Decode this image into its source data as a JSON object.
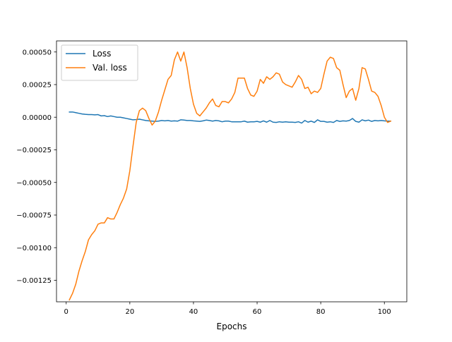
{
  "chart_data": {
    "type": "line",
    "title": "",
    "xlabel": "Epochs",
    "ylabel": "",
    "xlim": [
      -3.05,
      107.05
    ],
    "ylim": [
      -0.001415,
      0.000585
    ],
    "xticks": [
      0,
      20,
      40,
      60,
      80,
      100
    ],
    "xtick_labels": [
      "0",
      "20",
      "40",
      "60",
      "80",
      "100"
    ],
    "yticks": [
      -0.00125,
      -0.001,
      -0.00075,
      -0.0005,
      -0.00025,
      0.0,
      0.00025,
      0.0005
    ],
    "ytick_labels": [
      "−0.00125",
      "−0.00100",
      "−0.00075",
      "−0.00050",
      "−0.00025",
      "0.00000",
      "0.00025",
      "0.00050"
    ],
    "grid": false,
    "legend": "top-left",
    "series": [
      {
        "name": "Loss",
        "color": "#1f77b4",
        "x": [
          1,
          2,
          3,
          4,
          5,
          6,
          7,
          8,
          9,
          10,
          11,
          12,
          13,
          14,
          15,
          16,
          17,
          18,
          19,
          20,
          21,
          22,
          23,
          24,
          25,
          26,
          27,
          28,
          29,
          30,
          31,
          32,
          33,
          34,
          35,
          36,
          37,
          38,
          39,
          40,
          41,
          42,
          43,
          44,
          45,
          46,
          47,
          48,
          49,
          50,
          51,
          52,
          53,
          54,
          55,
          56,
          57,
          58,
          59,
          60,
          61,
          62,
          63,
          64,
          65,
          66,
          67,
          68,
          69,
          70,
          71,
          72,
          73,
          74,
          75,
          76,
          77,
          78,
          79,
          80,
          81,
          82,
          83,
          84,
          85,
          86,
          87,
          88,
          89,
          90,
          91,
          92,
          93,
          94,
          95,
          96,
          97,
          98,
          99,
          100,
          101,
          102
        ],
        "y": [
          4e-05,
          4e-05,
          3.5e-05,
          3e-05,
          2.5e-05,
          2.2e-05,
          2e-05,
          2e-05,
          1.8e-05,
          2e-05,
          1e-05,
          1.2e-05,
          5e-06,
          1e-05,
          5e-06,
          0.0,
          0.0,
          -5e-06,
          -1e-05,
          -1.5e-05,
          -2e-05,
          -1.8e-05,
          -1.5e-05,
          -2e-05,
          -2.5e-05,
          -2.8e-05,
          -3e-05,
          -3.2e-05,
          -3e-05,
          -2.5e-05,
          -2.8e-05,
          -2.5e-05,
          -3e-05,
          -2.8e-05,
          -3e-05,
          -2e-05,
          -2.2e-05,
          -2.5e-05,
          -2.5e-05,
          -2.8e-05,
          -3e-05,
          -3.2e-05,
          -2.8e-05,
          -2.2e-05,
          -2.5e-05,
          -3e-05,
          -2.5e-05,
          -2.8e-05,
          -3.5e-05,
          -3e-05,
          -3e-05,
          -3.5e-05,
          -3.5e-05,
          -3.5e-05,
          -3.5e-05,
          -3e-05,
          -3.8e-05,
          -3.5e-05,
          -3.5e-05,
          -3.2e-05,
          -3.8e-05,
          -2.8e-05,
          -3.8e-05,
          -2.5e-05,
          -3.8e-05,
          -4e-05,
          -3.5e-05,
          -3.8e-05,
          -3.5e-05,
          -3.8e-05,
          -3.8e-05,
          -4e-05,
          -3.5e-05,
          -4.5e-05,
          -2.5e-05,
          -3.8e-05,
          -3e-05,
          -4e-05,
          -2e-05,
          -3.2e-05,
          -3.2e-05,
          -3.8e-05,
          -3.5e-05,
          -4e-05,
          -2.5e-05,
          -3.2e-05,
          -2.8e-05,
          -3e-05,
          -2.5e-05,
          -1e-05,
          -3.2e-05,
          -3.8e-05,
          -2e-05,
          -2.8e-05,
          -2.2e-05,
          -3.2e-05,
          -2.5e-05,
          -2.8e-05,
          -2.5e-05,
          -2.8e-05,
          -3e-05,
          -3e-05
        ]
      },
      {
        "name": "Val. loss",
        "color": "#ff7f0e",
        "x": [
          1,
          2,
          3,
          4,
          5,
          6,
          7,
          8,
          9,
          10,
          11,
          12,
          13,
          14,
          15,
          16,
          17,
          18,
          19,
          20,
          21,
          22,
          23,
          24,
          25,
          26,
          27,
          28,
          29,
          30,
          31,
          32,
          33,
          34,
          35,
          36,
          37,
          38,
          39,
          40,
          41,
          42,
          43,
          44,
          45,
          46,
          47,
          48,
          49,
          50,
          51,
          52,
          53,
          54,
          55,
          56,
          57,
          58,
          59,
          60,
          61,
          62,
          63,
          64,
          65,
          66,
          67,
          68,
          69,
          70,
          71,
          72,
          73,
          74,
          75,
          76,
          77,
          78,
          79,
          80,
          81,
          82,
          83,
          84,
          85,
          86,
          87,
          88,
          89,
          90,
          91,
          92,
          93,
          94,
          95,
          96,
          97,
          98,
          99,
          100,
          101,
          102
        ],
        "y": [
          -0.0014,
          -0.00135,
          -0.00128,
          -0.00118,
          -0.0011,
          -0.00103,
          -0.00094,
          -0.0009,
          -0.00087,
          -0.00082,
          -0.00081,
          -0.00081,
          -0.00077,
          -0.00078,
          -0.00078,
          -0.00073,
          -0.00067,
          -0.00062,
          -0.00055,
          -0.00041,
          -0.00022,
          -4e-05,
          5e-05,
          7e-05,
          5e-05,
          -1e-05,
          -6e-05,
          -3e-05,
          4e-05,
          0.00013,
          0.00021,
          0.00029,
          0.00032,
          0.00044,
          0.0005,
          0.00043,
          0.0005,
          0.00038,
          0.00022,
          0.0001,
          3e-05,
          1e-05,
          4e-05,
          7e-05,
          0.00011,
          0.00014,
          9e-05,
          8e-05,
          0.00012,
          0.00012,
          0.00011,
          0.00014,
          0.00019,
          0.0003,
          0.0003,
          0.0003,
          0.00022,
          0.00017,
          0.00016,
          0.0002,
          0.00029,
          0.00026,
          0.00031,
          0.00029,
          0.00031,
          0.00034,
          0.00033,
          0.00027,
          0.00025,
          0.00024,
          0.00023,
          0.00027,
          0.00032,
          0.00029,
          0.00022,
          0.00023,
          0.00018,
          0.0002,
          0.00019,
          0.00022,
          0.00033,
          0.00043,
          0.00046,
          0.00045,
          0.00038,
          0.00036,
          0.00025,
          0.00015,
          0.0002,
          0.00022,
          0.00013,
          0.00022,
          0.00038,
          0.00037,
          0.00029,
          0.0002,
          0.00019,
          0.00016,
          9e-05,
          0.0,
          -4e-05,
          -3e-05
        ]
      }
    ]
  }
}
